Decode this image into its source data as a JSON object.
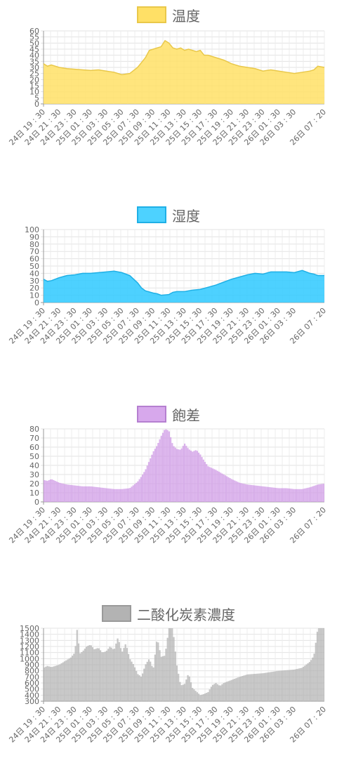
{
  "chart_data": [
    {
      "type": "area",
      "series": [
        {
          "name": "温度"
        }
      ],
      "legend": "top-center",
      "color": "#ffe066",
      "border": "#e9c84a",
      "y_ticks": [
        "0",
        "5",
        "10",
        "15",
        "20",
        "25",
        "30",
        "35",
        "40",
        "45",
        "50",
        "55",
        "60"
      ],
      "ylim": [
        0,
        60
      ],
      "x_labels": [
        "24日 19 : 30",
        "24日 21 : 30",
        "24日 23 : 30",
        "25日 01 : 30",
        "25日 03 : 30",
        "25日 05 : 30",
        "25日 07 : 30",
        "25日 09 : 30",
        "25日 11 : 30",
        "25日 13 : 30",
        "25日 15 : 30",
        "25日 17 : 30",
        "25日 19 : 30",
        "25日 21 : 30",
        "25日 23 : 30",
        "26日 01 : 30",
        "26日 03 : 30",
        "26日 07 : 20"
      ],
      "x_label_hours": [
        0,
        2,
        4,
        6,
        8,
        10,
        12,
        14,
        16,
        18,
        20,
        22,
        24,
        26,
        28,
        30,
        32,
        35.83
      ],
      "x_max": 35.83,
      "grid": true,
      "points": [
        [
          0,
          33
        ],
        [
          0.5,
          31
        ],
        [
          1,
          32
        ],
        [
          2,
          30
        ],
        [
          3,
          29
        ],
        [
          4,
          28.5
        ],
        [
          5,
          28
        ],
        [
          6,
          27.5
        ],
        [
          7,
          28
        ],
        [
          8,
          27
        ],
        [
          9,
          26
        ],
        [
          10,
          24
        ],
        [
          11,
          25
        ],
        [
          12,
          30
        ],
        [
          12.5,
          34
        ],
        [
          13,
          38
        ],
        [
          13.5,
          44
        ],
        [
          14,
          45
        ],
        [
          14.5,
          46
        ],
        [
          15,
          47
        ],
        [
          15.5,
          52
        ],
        [
          16,
          50
        ],
        [
          16.5,
          46
        ],
        [
          17,
          45
        ],
        [
          17.5,
          46
        ],
        [
          18,
          44
        ],
        [
          18.5,
          45
        ],
        [
          19,
          44
        ],
        [
          19.5,
          43
        ],
        [
          20,
          44
        ],
        [
          20.5,
          40
        ],
        [
          21,
          40
        ],
        [
          22,
          38
        ],
        [
          23,
          36
        ],
        [
          24,
          33
        ],
        [
          25,
          31
        ],
        [
          26,
          30
        ],
        [
          27,
          29
        ],
        [
          28,
          27
        ],
        [
          29,
          28
        ],
        [
          30,
          27
        ],
        [
          31,
          26
        ],
        [
          32,
          25
        ],
        [
          33,
          26
        ],
        [
          34,
          27
        ],
        [
          34.5,
          28
        ],
        [
          35,
          31
        ],
        [
          35.83,
          30
        ]
      ]
    },
    {
      "type": "area",
      "series": [
        {
          "name": "湿度"
        }
      ],
      "legend": "top-center",
      "color": "#2ec9ff",
      "border": "#1fb0e6",
      "y_ticks": [
        "0",
        "10",
        "20",
        "30",
        "40",
        "50",
        "60",
        "70",
        "80",
        "90",
        "100"
      ],
      "ylim": [
        0,
        100
      ],
      "x_labels": [
        "24日 19 : 30",
        "24日 21 : 30",
        "24日 23 : 30",
        "25日 01 : 30",
        "25日 03 : 30",
        "25日 05 : 30",
        "25日 07 : 30",
        "25日 09 : 30",
        "25日 11 : 30",
        "25日 13 : 30",
        "25日 15 : 30",
        "25日 17 : 30",
        "25日 19 : 30",
        "25日 21 : 30",
        "25日 23 : 30",
        "26日 01 : 30",
        "26日 03 : 30",
        "26日 07 : 20"
      ],
      "x_label_hours": [
        0,
        2,
        4,
        6,
        8,
        10,
        12,
        14,
        16,
        18,
        20,
        22,
        24,
        26,
        28,
        30,
        32,
        35.83
      ],
      "x_max": 35.83,
      "grid": true,
      "points": [
        [
          0,
          32
        ],
        [
          0.5,
          29
        ],
        [
          1,
          30
        ],
        [
          2,
          34
        ],
        [
          3,
          37
        ],
        [
          4,
          38
        ],
        [
          5,
          40
        ],
        [
          6,
          40
        ],
        [
          7,
          41
        ],
        [
          8,
          42
        ],
        [
          9,
          43
        ],
        [
          10,
          41
        ],
        [
          11,
          37
        ],
        [
          12,
          27
        ],
        [
          12.5,
          20
        ],
        [
          13,
          16
        ],
        [
          14,
          13
        ],
        [
          14.5,
          12
        ],
        [
          15,
          10
        ],
        [
          16,
          11
        ],
        [
          16.5,
          14
        ],
        [
          17,
          15
        ],
        [
          18,
          15
        ],
        [
          19,
          17
        ],
        [
          20,
          18
        ],
        [
          21,
          21
        ],
        [
          22,
          24
        ],
        [
          23,
          28
        ],
        [
          24,
          32
        ],
        [
          25,
          35
        ],
        [
          26,
          38
        ],
        [
          27,
          40
        ],
        [
          28,
          39
        ],
        [
          29,
          42
        ],
        [
          30,
          42
        ],
        [
          31,
          42
        ],
        [
          32,
          41
        ],
        [
          33,
          44
        ],
        [
          33.5,
          42
        ],
        [
          34,
          40
        ],
        [
          34.5,
          39
        ],
        [
          35,
          37
        ],
        [
          35.83,
          37
        ]
      ]
    },
    {
      "type": "bar",
      "series": [
        {
          "name": "飽差"
        }
      ],
      "legend": "top-center",
      "color": "#cf99e6",
      "border": "#b57fd0",
      "y_ticks": [
        "0",
        "10",
        "20",
        "30",
        "40",
        "50",
        "60",
        "70",
        "80"
      ],
      "ylim": [
        0,
        80
      ],
      "x_labels": [
        "24日 19 : 30",
        "24日 21 : 30",
        "24日 23 : 30",
        "25日 01 : 30",
        "25日 03 : 30",
        "25日 05 : 30",
        "25日 07 : 30",
        "25日 09 : 30",
        "25日 11 : 30",
        "25日 13 : 30",
        "25日 15 : 30",
        "25日 17 : 30",
        "25日 19 : 30",
        "25日 21 : 30",
        "25日 23 : 30",
        "26日 01 : 30",
        "26日 03 : 30",
        "26日 07 : 20"
      ],
      "x_label_hours": [
        0,
        2,
        4,
        6,
        8,
        10,
        12,
        14,
        16,
        18,
        20,
        22,
        24,
        26,
        28,
        30,
        32,
        35.83
      ],
      "x_max": 35.83,
      "grid": true,
      "points": [
        [
          0,
          24
        ],
        [
          0.5,
          23
        ],
        [
          1,
          25
        ],
        [
          2,
          21
        ],
        [
          3,
          19
        ],
        [
          4,
          18
        ],
        [
          5,
          17
        ],
        [
          6,
          17
        ],
        [
          7,
          16
        ],
        [
          8,
          15
        ],
        [
          9,
          14
        ],
        [
          10,
          14
        ],
        [
          11,
          15
        ],
        [
          12,
          22
        ],
        [
          12.5,
          28
        ],
        [
          13,
          35
        ],
        [
          13.5,
          45
        ],
        [
          14,
          55
        ],
        [
          14.5,
          62
        ],
        [
          15,
          72
        ],
        [
          15.5,
          80
        ],
        [
          16,
          78
        ],
        [
          16.5,
          62
        ],
        [
          17,
          58
        ],
        [
          17.5,
          57
        ],
        [
          18,
          64
        ],
        [
          18.5,
          58
        ],
        [
          19,
          55
        ],
        [
          19.5,
          57
        ],
        [
          20,
          52
        ],
        [
          20.5,
          45
        ],
        [
          21,
          39
        ],
        [
          22,
          35
        ],
        [
          23,
          30
        ],
        [
          24,
          25
        ],
        [
          25,
          21
        ],
        [
          26,
          19
        ],
        [
          27,
          18
        ],
        [
          28,
          17
        ],
        [
          29,
          16
        ],
        [
          30,
          15
        ],
        [
          31,
          15
        ],
        [
          32,
          14
        ],
        [
          33,
          14
        ],
        [
          34,
          16
        ],
        [
          35,
          19
        ],
        [
          35.83,
          20
        ]
      ]
    },
    {
      "type": "bar",
      "series": [
        {
          "name": "二酸化炭素濃度"
        }
      ],
      "legend": "top-center",
      "color": "#b3b3b3",
      "border": "#9a9a9a",
      "y_ticks": [
        "300",
        "400",
        "500",
        "600",
        "700",
        "800",
        "900",
        "1000",
        "1100",
        "1200",
        "1300",
        "1400",
        "1500"
      ],
      "ylim": [
        300,
        1500
      ],
      "x_labels": [
        "24日 19 : 30",
        "24日 21 : 30",
        "24日 23 : 30",
        "25日 01 : 30",
        "25日 03 : 30",
        "25日 05 : 30",
        "25日 07 : 30",
        "25日 09 : 30",
        "25日 11 : 30",
        "25日 13 : 30",
        "25日 15 : 30",
        "25日 17 : 30",
        "25日 19 : 30",
        "25日 21 : 30",
        "25日 23 : 30",
        "26日 01 : 30",
        "26日 03 : 30",
        "26日 07 : 20"
      ],
      "x_label_hours": [
        0,
        2,
        4,
        6,
        8,
        10,
        12,
        14,
        16,
        18,
        20,
        22,
        24,
        26,
        28,
        30,
        32,
        35.83
      ],
      "x_max": 35.83,
      "grid": true,
      "points": [
        [
          0,
          850
        ],
        [
          0.5,
          880
        ],
        [
          1,
          860
        ],
        [
          2,
          900
        ],
        [
          3,
          980
        ],
        [
          3.5,
          1020
        ],
        [
          4,
          1100
        ],
        [
          4.3,
          1500
        ],
        [
          4.6,
          1080
        ],
        [
          5,
          1120
        ],
        [
          5.5,
          1200
        ],
        [
          6,
          1230
        ],
        [
          6.5,
          1150
        ],
        [
          7,
          1180
        ],
        [
          7.5,
          1100
        ],
        [
          8,
          1120
        ],
        [
          8.5,
          1200
        ],
        [
          9,
          1140
        ],
        [
          9.5,
          1350
        ],
        [
          10,
          1100
        ],
        [
          10.5,
          1250
        ],
        [
          11,
          1000
        ],
        [
          11.5,
          900
        ],
        [
          12,
          750
        ],
        [
          12.5,
          700
        ],
        [
          13,
          900
        ],
        [
          13.5,
          1000
        ],
        [
          14,
          820
        ],
        [
          14.5,
          1350
        ],
        [
          15,
          1030
        ],
        [
          15.5,
          1050
        ],
        [
          16,
          1500
        ],
        [
          16.5,
          1500
        ],
        [
          17,
          900
        ],
        [
          17.5,
          560
        ],
        [
          18,
          580
        ],
        [
          18.5,
          760
        ],
        [
          19,
          520
        ],
        [
          19.5,
          460
        ],
        [
          20,
          400
        ],
        [
          20.5,
          420
        ],
        [
          21,
          450
        ],
        [
          21.5,
          560
        ],
        [
          22,
          600
        ],
        [
          22.5,
          550
        ],
        [
          23,
          600
        ],
        [
          24,
          650
        ],
        [
          25,
          700
        ],
        [
          26,
          740
        ],
        [
          27,
          750
        ],
        [
          28,
          760
        ],
        [
          29,
          780
        ],
        [
          30,
          800
        ],
        [
          31,
          810
        ],
        [
          32,
          820
        ],
        [
          33,
          850
        ],
        [
          33.5,
          900
        ],
        [
          34,
          950
        ],
        [
          34.5,
          1050
        ],
        [
          35,
          1500
        ],
        [
          35.83,
          1500
        ]
      ]
    }
  ]
}
